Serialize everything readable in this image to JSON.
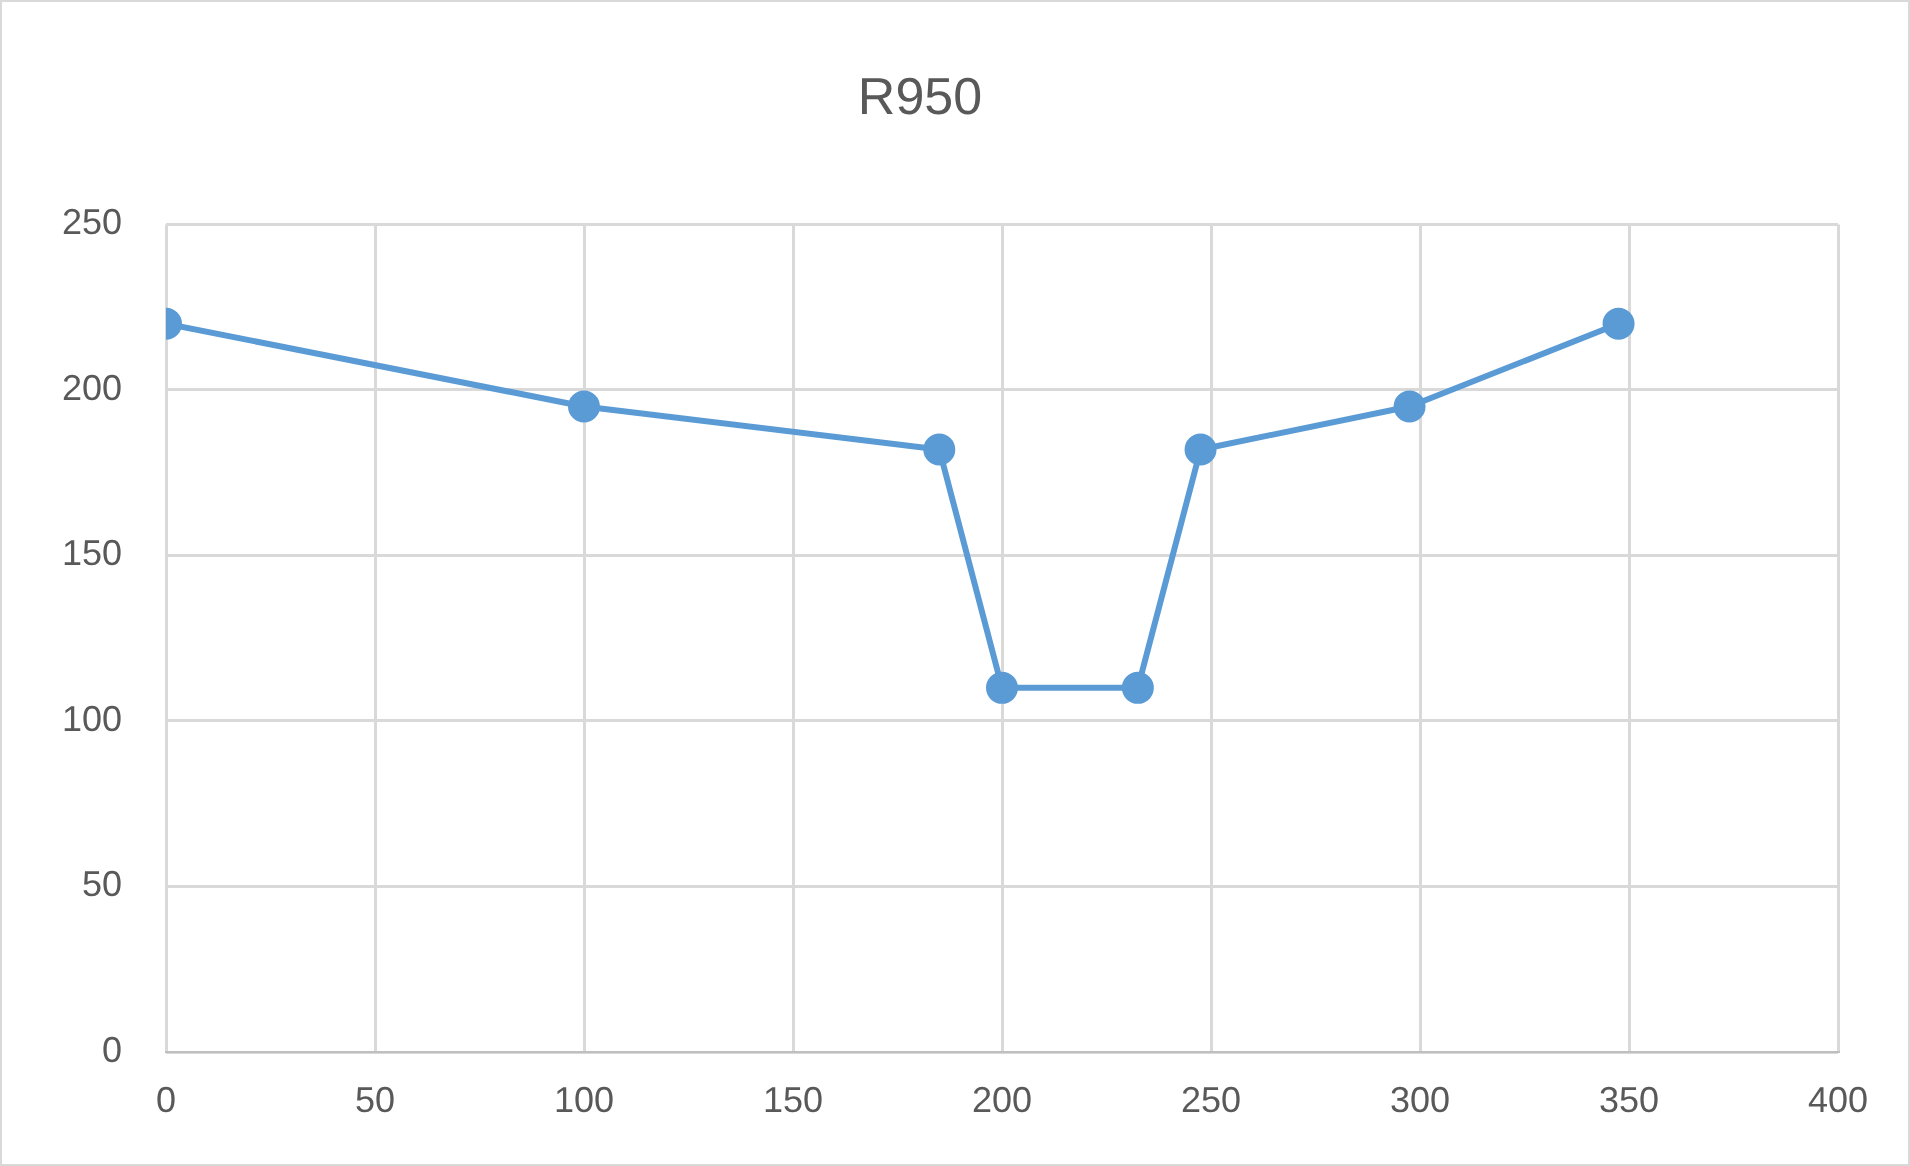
{
  "chart_data": {
    "type": "scatter",
    "title": "R950",
    "series": [
      {
        "type": "line",
        "color": "#5b9bd5",
        "x": [
          0,
          100,
          185,
          200,
          232.5,
          247.5,
          297.5,
          347.5
        ],
        "values": [
          220,
          195,
          182,
          110,
          110,
          182,
          195,
          220
        ]
      }
    ],
    "xlim": [
      0,
      400
    ],
    "xticks": [
      0,
      50,
      100,
      150,
      200,
      250,
      300,
      350,
      400
    ],
    "ylim": [
      0,
      250
    ],
    "yticks": [
      0,
      50,
      100,
      150,
      200,
      250
    ],
    "grid": true,
    "legend": false,
    "marker": "circle",
    "line_style": "solid"
  }
}
